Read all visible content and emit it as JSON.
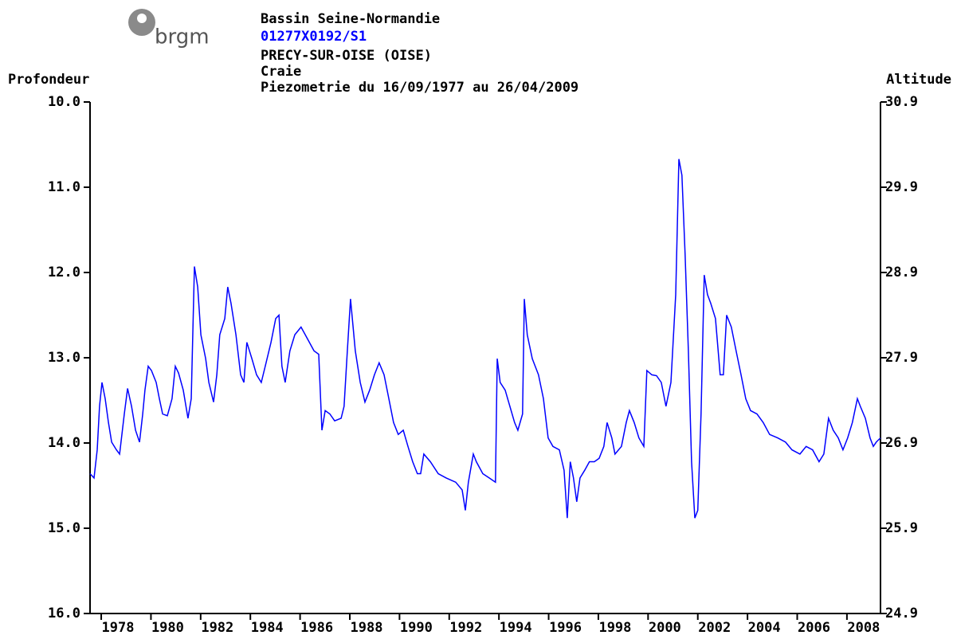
{
  "logo": "brgm",
  "chart_data": {
    "type": "line",
    "title": "Bassin Seine-Normandie",
    "subtitle": "01277X0192/S1",
    "lines": [
      "PRECY-SUR-OISE (OISE)",
      "Craie",
      "Piezometrie du 16/09/1977 au 26/04/2009"
    ],
    "y_label": "Profondeur",
    "y2_label": "Altitude",
    "xlim": [
      1977.55,
      2009.35
    ],
    "xticks": [
      1978,
      1980,
      1982,
      1984,
      1986,
      1988,
      1990,
      1992,
      1994,
      1996,
      1998,
      2000,
      2002,
      2004,
      2006,
      2008
    ],
    "ylim": [
      10,
      16
    ],
    "y_inverted": true,
    "yticks": [
      {
        "value": 10,
        "label": "10.0"
      },
      {
        "value": 11,
        "label": "11.0"
      },
      {
        "value": 12,
        "label": "12.0"
      },
      {
        "value": 13,
        "label": "13.0"
      },
      {
        "value": 14,
        "label": "14.0"
      },
      {
        "value": 15,
        "label": "15.0"
      },
      {
        "value": 16,
        "label": "16.0"
      }
    ],
    "y2lim": [
      24.9,
      30.9
    ],
    "y2ticks": [
      30.9,
      29.9,
      28.9,
      27.9,
      26.9,
      25.9,
      24.9
    ],
    "series": [
      {
        "color": "#0000ff",
        "x": [
          1977.55,
          1977.71,
          1977.84,
          1977.93,
          1978.03,
          1978.16,
          1978.29,
          1978.42,
          1978.61,
          1978.74,
          1978.93,
          1979.06,
          1979.22,
          1979.38,
          1979.54,
          1979.67,
          1979.76,
          1979.89,
          1980.02,
          1980.21,
          1980.34,
          1980.47,
          1980.66,
          1980.85,
          1980.98,
          1981.11,
          1981.3,
          1981.49,
          1981.62,
          1981.75,
          1981.88,
          1982.01,
          1982.2,
          1982.33,
          1982.52,
          1982.65,
          1982.77,
          1982.97,
          1983.09,
          1983.22,
          1983.42,
          1983.61,
          1983.74,
          1983.86,
          1984.06,
          1984.25,
          1984.44,
          1984.63,
          1984.83,
          1985.02,
          1985.15,
          1985.27,
          1985.4,
          1985.59,
          1985.79,
          1986.04,
          1986.3,
          1986.56,
          1986.75,
          1986.88,
          1987.01,
          1987.2,
          1987.39,
          1987.65,
          1987.77,
          1987.9,
          1988.03,
          1988.22,
          1988.42,
          1988.61,
          1988.8,
          1988.99,
          1989.18,
          1989.38,
          1989.57,
          1989.76,
          1989.95,
          1990.15,
          1990.34,
          1990.53,
          1990.72,
          1990.85,
          1990.98,
          1991.24,
          1991.56,
          1991.88,
          1992.26,
          1992.52,
          1992.65,
          1992.77,
          1992.97,
          1993.09,
          1993.35,
          1993.61,
          1993.86,
          1993.93,
          1994.05,
          1994.25,
          1994.44,
          1994.63,
          1994.76,
          1994.95,
          1995.02,
          1995.14,
          1995.34,
          1995.59,
          1995.79,
          1995.98,
          1996.17,
          1996.43,
          1996.62,
          1996.75,
          1996.87,
          1997.0,
          1997.13,
          1997.26,
          1997.45,
          1997.64,
          1997.84,
          1998.03,
          1998.22,
          1998.35,
          1998.54,
          1998.67,
          1998.93,
          1999.12,
          1999.25,
          1999.44,
          1999.63,
          1999.83,
          1999.95,
          2000.15,
          2000.34,
          2000.53,
          2000.72,
          2000.92,
          2001.11,
          2001.24,
          2001.36,
          2001.49,
          2001.62,
          2001.75,
          2001.88,
          2002.0,
          2002.13,
          2002.26,
          2002.39,
          2002.52,
          2002.71,
          2002.9,
          2003.03,
          2003.16,
          2003.35,
          2003.54,
          2003.74,
          2003.93,
          2004.12,
          2004.38,
          2004.63,
          2004.89,
          2005.21,
          2005.53,
          2005.79,
          2006.11,
          2006.36,
          2006.62,
          2006.88,
          2007.07,
          2007.26,
          2007.45,
          2007.65,
          2007.84,
          2008.03,
          2008.22,
          2008.42,
          2008.54,
          2008.74,
          2008.93,
          2009.06,
          2009.18,
          2009.35
        ],
        "values": [
          14.36,
          14.41,
          14.08,
          13.57,
          13.29,
          13.48,
          13.76,
          13.99,
          14.08,
          14.13,
          13.66,
          13.36,
          13.57,
          13.85,
          13.99,
          13.66,
          13.38,
          13.1,
          13.15,
          13.29,
          13.48,
          13.66,
          13.68,
          13.48,
          13.1,
          13.18,
          13.38,
          13.71,
          13.48,
          11.93,
          12.17,
          12.73,
          13.01,
          13.29,
          13.52,
          13.2,
          12.73,
          12.54,
          12.17,
          12.36,
          12.73,
          13.2,
          13.29,
          12.82,
          13.01,
          13.2,
          13.29,
          13.06,
          12.82,
          12.54,
          12.5,
          13.1,
          13.29,
          12.92,
          12.73,
          12.64,
          12.78,
          12.92,
          12.96,
          13.85,
          13.62,
          13.66,
          13.74,
          13.71,
          13.57,
          12.92,
          12.31,
          12.92,
          13.29,
          13.52,
          13.38,
          13.2,
          13.06,
          13.2,
          13.48,
          13.76,
          13.9,
          13.85,
          14.04,
          14.22,
          14.36,
          14.36,
          14.13,
          14.22,
          14.36,
          14.41,
          14.46,
          14.55,
          14.79,
          14.46,
          14.13,
          14.22,
          14.36,
          14.41,
          14.46,
          13.01,
          13.29,
          13.38,
          13.57,
          13.76,
          13.85,
          13.66,
          12.31,
          12.73,
          13.01,
          13.2,
          13.48,
          13.94,
          14.04,
          14.08,
          14.32,
          14.88,
          14.22,
          14.41,
          14.69,
          14.41,
          14.32,
          14.22,
          14.22,
          14.18,
          14.04,
          13.76,
          13.94,
          14.13,
          14.04,
          13.76,
          13.62,
          13.76,
          13.94,
          14.04,
          13.15,
          13.2,
          13.21,
          13.29,
          13.57,
          13.29,
          12.26,
          10.67,
          10.86,
          11.79,
          12.92,
          14.22,
          14.88,
          14.79,
          13.66,
          12.03,
          12.26,
          12.36,
          12.54,
          13.2,
          13.2,
          12.5,
          12.64,
          12.92,
          13.2,
          13.48,
          13.62,
          13.66,
          13.76,
          13.9,
          13.94,
          13.99,
          14.08,
          14.13,
          14.04,
          14.08,
          14.22,
          14.13,
          13.71,
          13.85,
          13.94,
          14.08,
          13.94,
          13.76,
          13.48,
          13.57,
          13.71,
          13.94,
          14.04,
          13.99,
          13.94
        ]
      }
    ]
  }
}
